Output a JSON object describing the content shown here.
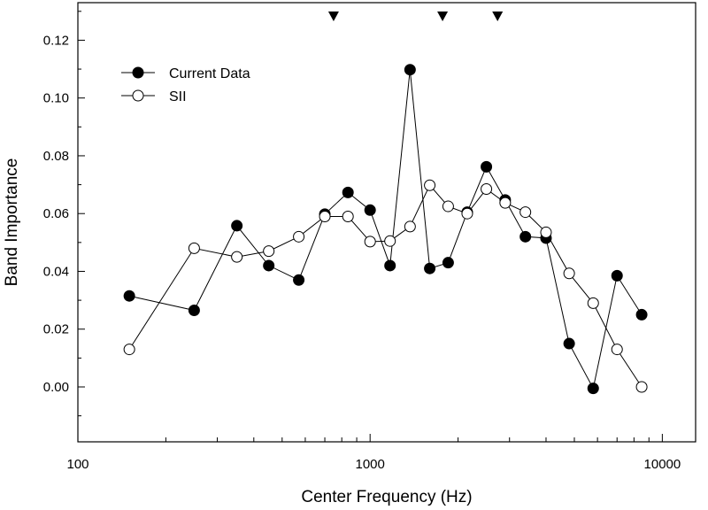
{
  "chart_data": {
    "type": "scatter",
    "xlabel": "Center Frequency (Hz)",
    "ylabel": "Band Importance",
    "x_scale": "log",
    "xlim": [
      100,
      13000
    ],
    "ylim": [
      -0.019,
      0.133
    ],
    "x_ticks": [
      100,
      1000,
      10000
    ],
    "x_tick_labels": [
      "100",
      "1000",
      "10000"
    ],
    "y_ticks": [
      0.0,
      0.02,
      0.04,
      0.06,
      0.08,
      0.1,
      0.12
    ],
    "y_tick_labels": [
      "0.00",
      "0.02",
      "0.04",
      "0.06",
      "0.08",
      "0.10",
      "0.12"
    ],
    "legend_position": "top-left",
    "markers_top": [
      750,
      1770,
      2730
    ],
    "series": [
      {
        "name": "Current Data",
        "marker": "filled-circle",
        "color": "#000000",
        "x": [
          150,
          250,
          350,
          450,
          570,
          700,
          840,
          1000,
          1170,
          1370,
          1600,
          1850,
          2150,
          2500,
          2900,
          3400,
          4000,
          4800,
          5800,
          7000,
          8500
        ],
        "y": [
          0.0315,
          0.0265,
          0.0558,
          0.042,
          0.037,
          0.0598,
          0.0673,
          0.0612,
          0.042,
          0.1098,
          0.041,
          0.043,
          0.0605,
          0.0762,
          0.0647,
          0.052,
          0.0515,
          0.015,
          -0.0005,
          0.0385,
          0.025
        ]
      },
      {
        "name": "SII",
        "marker": "open-circle",
        "color": "#000000",
        "x": [
          150,
          250,
          350,
          450,
          570,
          700,
          840,
          1000,
          1170,
          1370,
          1600,
          1850,
          2150,
          2500,
          2900,
          3400,
          4000,
          4800,
          5800,
          7000,
          8500
        ],
        "y": [
          0.013,
          0.048,
          0.045,
          0.047,
          0.052,
          0.059,
          0.059,
          0.0503,
          0.0505,
          0.0555,
          0.0698,
          0.0625,
          0.06,
          0.0685,
          0.0637,
          0.0605,
          0.0535,
          0.0393,
          0.029,
          0.013,
          0.0
        ]
      }
    ]
  }
}
